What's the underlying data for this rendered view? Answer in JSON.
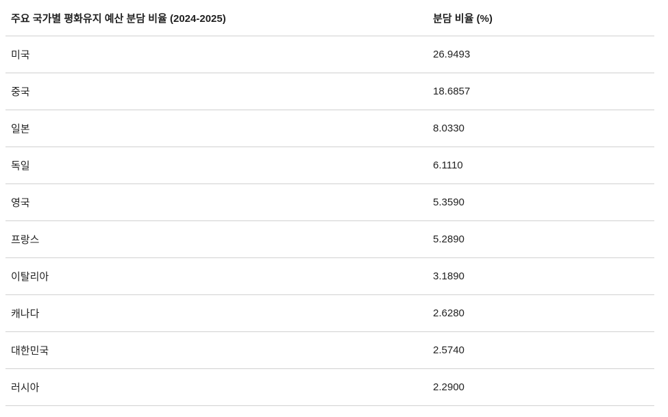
{
  "table": {
    "header": [
      "주요 국가별 평화유지 예산 분담 비율 (2024-2025)",
      "분담 비율 (%)"
    ],
    "rows": [
      [
        "미국",
        "26.9493"
      ],
      [
        "중국",
        "18.6857"
      ],
      [
        "일본",
        "8.0330"
      ],
      [
        "독일",
        "6.1110"
      ],
      [
        "영국",
        "5.3590"
      ],
      [
        "프랑스",
        "5.2890"
      ],
      [
        "이탈리아",
        "3.1890"
      ],
      [
        "캐나다",
        "2.6280"
      ],
      [
        "대한민국",
        "2.5740"
      ],
      [
        "러시아",
        "2.2900"
      ]
    ]
  }
}
